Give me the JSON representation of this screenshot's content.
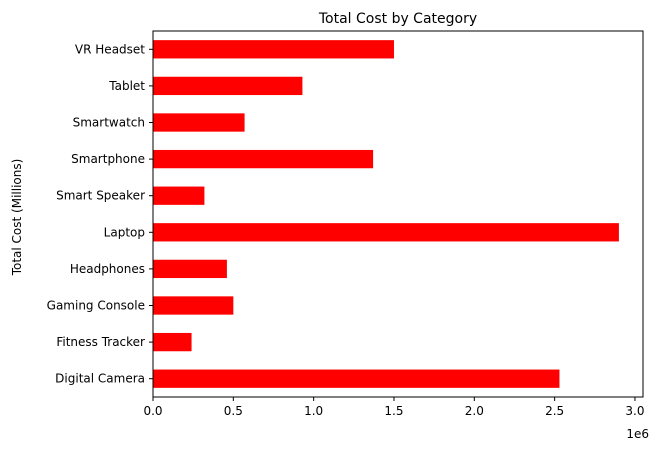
{
  "chart_data": {
    "type": "bar",
    "orientation": "horizontal",
    "title": "Total Cost by Category",
    "xlabel": "",
    "ylabel": "Total Cost (Millions)",
    "x_offset_label": "1e6",
    "xlim": [
      0,
      3.05
    ],
    "x_ticks": [
      0.0,
      0.5,
      1.0,
      1.5,
      2.0,
      2.5,
      3.0
    ],
    "x_tick_labels": [
      "0.0",
      "0.5",
      "1.0",
      "1.5",
      "2.0",
      "2.5",
      "3.0"
    ],
    "grid": false,
    "legend": "none",
    "bar_color": "#ff0000",
    "categories": [
      "Digital Camera",
      "Fitness Tracker",
      "Gaming Console",
      "Headphones",
      "Laptop",
      "Smart Speaker",
      "Smartphone",
      "Smartwatch",
      "Tablet",
      "VR Headset"
    ],
    "values": [
      2.53,
      0.24,
      0.5,
      0.46,
      2.9,
      0.32,
      1.37,
      0.57,
      0.93,
      1.5
    ]
  }
}
